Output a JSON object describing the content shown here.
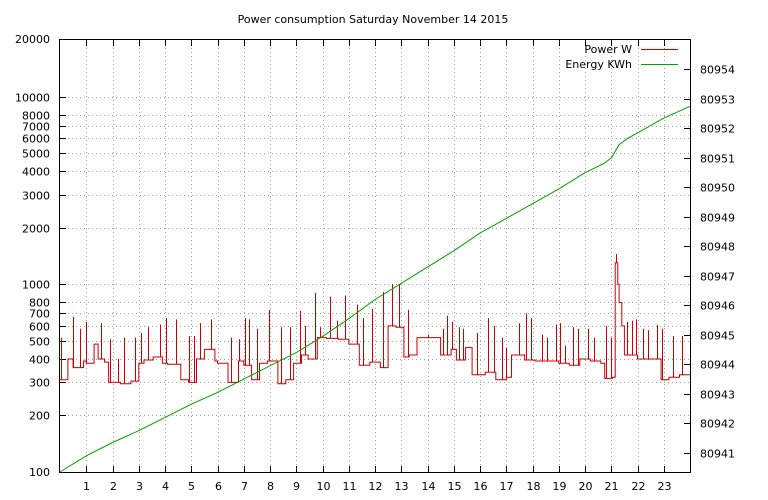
{
  "chart_data": {
    "type": "line",
    "title": "Power consumption Saturday November 14 2015",
    "xlabel": "",
    "ylabel": "",
    "y2label": "",
    "xlim": [
      0,
      24
    ],
    "x_ticks": [
      1,
      2,
      3,
      4,
      5,
      6,
      7,
      8,
      9,
      10,
      11,
      12,
      13,
      14,
      15,
      16,
      17,
      18,
      19,
      20,
      21,
      22,
      23
    ],
    "ylim": [
      100,
      20000
    ],
    "y_scale": "log",
    "y_ticks": [
      {
        "v": 200,
        "label": "200"
      },
      {
        "v": 300,
        "label": "300"
      },
      {
        "v": 400,
        "label": "400"
      },
      {
        "v": 500,
        "label": "500"
      },
      {
        "v": 600,
        "label": "600"
      },
      {
        "v": 700,
        "label": "700"
      },
      {
        "v": 800,
        "label": "800"
      },
      {
        "v": 1000,
        "label": "1000"
      },
      {
        "v": 2000,
        "label": "2000"
      },
      {
        "v": 3000,
        "label": "3000"
      },
      {
        "v": 4000,
        "label": "4000"
      },
      {
        "v": 5000,
        "label": "5000"
      },
      {
        "v": 6000,
        "label": "6000"
      },
      {
        "v": 7000,
        "label": "7000"
      },
      {
        "v": 8000,
        "label": "8000"
      },
      {
        "v": 10000,
        "label": "10000"
      }
    ],
    "y_end_labels": {
      "min": "100",
      "max": "20000"
    },
    "y2lim": [
      80940.35,
      80955.0
    ],
    "y2_ticks": [
      80941,
      80942,
      80943,
      80944,
      80945,
      80946,
      80947,
      80948,
      80949,
      80950,
      80951,
      80952,
      80953,
      80954
    ],
    "grid": true,
    "legend_position": "top-right",
    "series": [
      {
        "name": "Power W",
        "color": "#cc0000",
        "axis": "left",
        "step": true,
        "x": [
          0,
          0.3,
          0.5,
          0.9,
          1.0,
          1.3,
          1.45,
          1.7,
          1.85,
          2.3,
          2.7,
          3.0,
          3.2,
          3.55,
          3.9,
          4.1,
          4.6,
          4.9,
          5.2,
          5.5,
          5.9,
          6.0,
          6.4,
          6.8,
          7.0,
          7.3,
          7.6,
          7.9,
          8.3,
          8.6,
          8.9,
          9.2,
          9.45,
          9.8,
          10.15,
          10.6,
          11.0,
          11.4,
          11.8,
          12.2,
          12.5,
          12.8,
          13.1,
          13.3,
          13.6,
          14.0,
          14.5,
          14.9,
          15.1,
          15.45,
          15.7,
          16.2,
          16.6,
          17.0,
          17.2,
          17.7,
          18.1,
          18.6,
          19.0,
          19.4,
          19.8,
          20.2,
          20.6,
          20.75,
          21.05,
          21.15,
          21.25,
          21.3,
          21.4,
          21.5,
          22.0,
          22.5,
          22.7,
          22.9,
          23.2,
          23.6,
          23.95
        ],
        "y": [
          310,
          400,
          360,
          390,
          380,
          480,
          400,
          385,
          300,
          295,
          305,
          380,
          395,
          410,
          380,
          375,
          310,
          300,
          400,
          450,
          390,
          380,
          300,
          390,
          370,
          310,
          380,
          390,
          295,
          310,
          380,
          420,
          400,
          520,
          515,
          510,
          480,
          370,
          385,
          360,
          600,
          590,
          410,
          420,
          520,
          520,
          420,
          450,
          395,
          460,
          330,
          340,
          310,
          320,
          420,
          395,
          390,
          390,
          380,
          370,
          400,
          390,
          380,
          315,
          320,
          1300,
          1000,
          800,
          600,
          420,
          400,
          400,
          400,
          310,
          320,
          330,
          330
        ],
        "spikes": [
          {
            "x": 0.05,
            "y": 520
          },
          {
            "x": 0.5,
            "y": 670
          },
          {
            "x": 0.75,
            "y": 580
          },
          {
            "x": 1.0,
            "y": 630
          },
          {
            "x": 1.55,
            "y": 620
          },
          {
            "x": 1.9,
            "y": 510
          },
          {
            "x": 2.2,
            "y": 400
          },
          {
            "x": 2.45,
            "y": 520
          },
          {
            "x": 2.85,
            "y": 520
          },
          {
            "x": 3.1,
            "y": 550
          },
          {
            "x": 3.35,
            "y": 590
          },
          {
            "x": 3.8,
            "y": 610
          },
          {
            "x": 4.05,
            "y": 660
          },
          {
            "x": 4.4,
            "y": 650
          },
          {
            "x": 4.9,
            "y": 530
          },
          {
            "x": 5.1,
            "y": 530
          },
          {
            "x": 5.35,
            "y": 620
          },
          {
            "x": 5.75,
            "y": 650
          },
          {
            "x": 6.5,
            "y": 520
          },
          {
            "x": 6.8,
            "y": 510
          },
          {
            "x": 7.05,
            "y": 660
          },
          {
            "x": 7.2,
            "y": 650
          },
          {
            "x": 7.5,
            "y": 580
          },
          {
            "x": 7.95,
            "y": 730
          },
          {
            "x": 8.4,
            "y": 590
          },
          {
            "x": 8.75,
            "y": 590
          },
          {
            "x": 9.15,
            "y": 720
          },
          {
            "x": 9.35,
            "y": 600
          },
          {
            "x": 9.7,
            "y": 900
          },
          {
            "x": 9.9,
            "y": 590
          },
          {
            "x": 10.3,
            "y": 860
          },
          {
            "x": 10.55,
            "y": 640
          },
          {
            "x": 10.85,
            "y": 870
          },
          {
            "x": 11.3,
            "y": 780
          },
          {
            "x": 11.55,
            "y": 660
          },
          {
            "x": 11.9,
            "y": 740
          },
          {
            "x": 12.3,
            "y": 910
          },
          {
            "x": 12.65,
            "y": 1000
          },
          {
            "x": 12.9,
            "y": 1000
          },
          {
            "x": 13.25,
            "y": 730
          },
          {
            "x": 14.0,
            "y": 540
          },
          {
            "x": 14.6,
            "y": 580
          },
          {
            "x": 14.75,
            "y": 680
          },
          {
            "x": 14.95,
            "y": 630
          },
          {
            "x": 15.2,
            "y": 590
          },
          {
            "x": 15.35,
            "y": 580
          },
          {
            "x": 15.9,
            "y": 550
          },
          {
            "x": 16.3,
            "y": 660
          },
          {
            "x": 16.55,
            "y": 600
          },
          {
            "x": 16.85,
            "y": 520
          },
          {
            "x": 17.0,
            "y": 460
          },
          {
            "x": 17.5,
            "y": 620
          },
          {
            "x": 17.75,
            "y": 700
          },
          {
            "x": 17.95,
            "y": 660
          },
          {
            "x": 18.35,
            "y": 540
          },
          {
            "x": 18.55,
            "y": 520
          },
          {
            "x": 18.9,
            "y": 610
          },
          {
            "x": 19.05,
            "y": 620
          },
          {
            "x": 19.25,
            "y": 470
          },
          {
            "x": 19.55,
            "y": 590
          },
          {
            "x": 19.75,
            "y": 580
          },
          {
            "x": 20.1,
            "y": 580
          },
          {
            "x": 20.35,
            "y": 520
          },
          {
            "x": 20.8,
            "y": 600
          },
          {
            "x": 21.0,
            "y": 520
          },
          {
            "x": 21.18,
            "y": 1450
          },
          {
            "x": 21.6,
            "y": 630
          },
          {
            "x": 21.8,
            "y": 640
          },
          {
            "x": 21.95,
            "y": 650
          },
          {
            "x": 22.2,
            "y": 580
          },
          {
            "x": 22.4,
            "y": 570
          },
          {
            "x": 22.75,
            "y": 610
          },
          {
            "x": 22.95,
            "y": 580
          },
          {
            "x": 23.35,
            "y": 530
          },
          {
            "x": 23.7,
            "y": 530
          }
        ]
      },
      {
        "name": "Energy KWh",
        "color": "#00a000",
        "axis": "right",
        "x": [
          0,
          1,
          2,
          3,
          4,
          5,
          6,
          7,
          8,
          9,
          10,
          11,
          12,
          13,
          14,
          15,
          16,
          17,
          18,
          19,
          20,
          20.7,
          21.0,
          21.3,
          21.6,
          22,
          23,
          24
        ],
        "y": [
          80940.35,
          80940.9,
          80941.35,
          80941.75,
          80942.2,
          80942.65,
          80943.05,
          80943.5,
          80943.95,
          80944.4,
          80944.95,
          80945.55,
          80946.2,
          80946.75,
          80947.3,
          80947.85,
          80948.45,
          80948.95,
          80949.45,
          80949.95,
          80950.5,
          80950.8,
          80951.0,
          80951.45,
          80951.65,
          80951.85,
          80952.35,
          80952.75
        ]
      }
    ]
  }
}
